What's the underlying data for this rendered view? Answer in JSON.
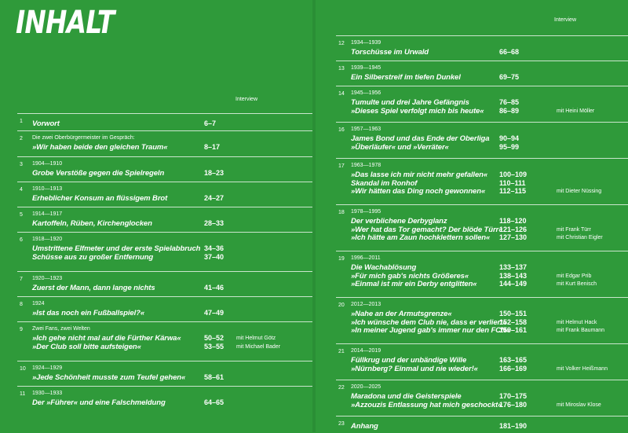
{
  "title": "INHALT",
  "left_interview_label": "Interview",
  "right_interview_label": "Interview",
  "left_entries": [
    {
      "n": "1",
      "years": "",
      "lines": [
        {
          "t": "Vorwort",
          "p": "6–7",
          "i": ""
        }
      ]
    },
    {
      "n": "2",
      "years": "Die zwei Oberbürgermeister im Gespräch:",
      "lines": [
        {
          "t": "»Wir haben beide den gleichen Traum«",
          "p": "8–17",
          "i": ""
        }
      ]
    },
    {
      "n": "3",
      "years": "1904—1910",
      "lines": [
        {
          "t": "Grobe Verstöße gegen die Spielregeln",
          "p": "18–23",
          "i": ""
        }
      ]
    },
    {
      "n": "4",
      "years": "1910—1913",
      "lines": [
        {
          "t": "Erheblicher Konsum an flüssigem Brot",
          "p": "24–27",
          "i": ""
        }
      ]
    },
    {
      "n": "5",
      "years": "1914—1917",
      "lines": [
        {
          "t": "Kartoffeln, Rüben, Kirchenglocken",
          "p": "28–33",
          "i": ""
        }
      ]
    },
    {
      "n": "6",
      "years": "1918—1920",
      "lines": [
        {
          "t": "Umstrittene Elfmeter und der erste Spielabbruch",
          "p": "34–36",
          "i": ""
        },
        {
          "t": "Schüsse aus zu großer Entfernung",
          "p": "37–40",
          "i": ""
        }
      ]
    },
    {
      "n": "7",
      "years": "1920—1923",
      "lines": [
        {
          "t": "Zuerst der Mann, dann lange nichts",
          "p": "41–46",
          "i": ""
        }
      ]
    },
    {
      "n": "8",
      "years": "1924",
      "lines": [
        {
          "t": "»Ist das noch ein Fußballspiel?«",
          "p": "47–49",
          "i": ""
        }
      ]
    },
    {
      "n": "9",
      "years": "Zwei Fans, zwei Welten",
      "lines": [
        {
          "t": "»Ich gehe nicht mal auf die Fürther Kärwa«",
          "p": "50–52",
          "i": "mit Helmut Götz"
        },
        {
          "t": "»Der Club soll bitte aufsteigen«",
          "p": "53–55",
          "i": "mit Michael Bader"
        }
      ]
    },
    {
      "n": "10",
      "years": "1924—1929",
      "lines": [
        {
          "t": "»Jede Schönheit musste zum Teufel gehen«",
          "p": "58–61",
          "i": ""
        }
      ]
    },
    {
      "n": "11",
      "years": "1930—1933",
      "lines": [
        {
          "t": "Der »Führer« und eine Falschmeldung",
          "p": "64–65",
          "i": ""
        }
      ]
    }
  ],
  "right_entries": [
    {
      "n": "12",
      "years": "1934—1939",
      "lines": [
        {
          "t": "Torschüsse im Urwald",
          "p": "66–68",
          "i": ""
        }
      ]
    },
    {
      "n": "13",
      "years": "1939—1945",
      "lines": [
        {
          "t": "Ein Silberstreif im tiefen Dunkel",
          "p": "69–75",
          "i": ""
        }
      ]
    },
    {
      "n": "14",
      "years": "1945—1956",
      "lines": [
        {
          "t": "Tumulte und drei Jahre Gefängnis",
          "p": "76–85",
          "i": ""
        },
        {
          "t": "»Dieses Spiel verfolgt mich bis heute«",
          "p": "86–89",
          "i": "mit Heini Möller"
        }
      ]
    },
    {
      "n": "16",
      "years": "1957—1963",
      "lines": [
        {
          "t": "James Bond und das Ende der Oberliga",
          "p": "90–94",
          "i": ""
        },
        {
          "t": "»Überläufer« und »Verräter«",
          "p": "95–99",
          "i": ""
        }
      ]
    },
    {
      "n": "17",
      "years": "1963—1978",
      "lines": [
        {
          "t": "»Das lasse ich mir nicht mehr gefallen«",
          "p": "100–109",
          "i": ""
        },
        {
          "t": "Skandal im Ronhof",
          "p": "110–111",
          "i": ""
        },
        {
          "t": "»Wir hätten das Ding noch gewonnen«",
          "p": "112–115",
          "i": "mit Dieter Nüssing"
        }
      ]
    },
    {
      "n": "18",
      "years": "1978—1995",
      "lines": [
        {
          "t": "Der verblichene Derbyglanz",
          "p": "118–120",
          "i": ""
        },
        {
          "t": "»Wer hat das Tor gemacht? Der blöde Türr«",
          "p": "121–126",
          "i": "mit Frank Türr"
        },
        {
          "t": "»Ich hätte am Zaun hochklettern sollen«",
          "p": "127–130",
          "i": "mit Christian Eigler"
        }
      ]
    },
    {
      "n": "19",
      "years": "1996—2011",
      "lines": [
        {
          "t": "Die Wachablösung",
          "p": "133–137",
          "i": ""
        },
        {
          "t": "»Für mich gab's nichts Größeres«",
          "p": "138–143",
          "i": "mit Edgar Prib"
        },
        {
          "t": "»Einmal ist mir ein Derby entglitten«",
          "p": "144–149",
          "i": "mit Kurt Benisch"
        }
      ]
    },
    {
      "n": "20",
      "years": "2012—2013",
      "lines": [
        {
          "t": "»Nahe an der Armutsgrenze«",
          "p": "150–151",
          "i": ""
        },
        {
          "t": "»Ich wünsche dem Club nie, dass er verliert«",
          "p": "152–158",
          "i": "mit Helmut Hack"
        },
        {
          "t": "»In meiner Jugend gab's immer nur den FCN«",
          "p": "159–161",
          "i": "mit Frank Baumann"
        }
      ]
    },
    {
      "n": "21",
      "years": "2014—2019",
      "lines": [
        {
          "t": "Füllkrug und der unbändige Wille",
          "p": "163–165",
          "i": ""
        },
        {
          "t": "»Nürnberg? Einmal und nie wieder!«",
          "p": "166–169",
          "i": "mit Volker Heißmann"
        }
      ]
    },
    {
      "n": "22",
      "years": "2020—2025",
      "lines": [
        {
          "t": "Maradona und die Geisterspiele",
          "p": "170–175",
          "i": ""
        },
        {
          "t": "»Azzouzis Entlassung hat mich geschockt«",
          "p": "176–180",
          "i": "mit Miroslav Klose"
        }
      ]
    },
    {
      "n": "23",
      "years": "",
      "lines": [
        {
          "t": "Anhang",
          "p": "181–190",
          "i": ""
        }
      ]
    }
  ]
}
